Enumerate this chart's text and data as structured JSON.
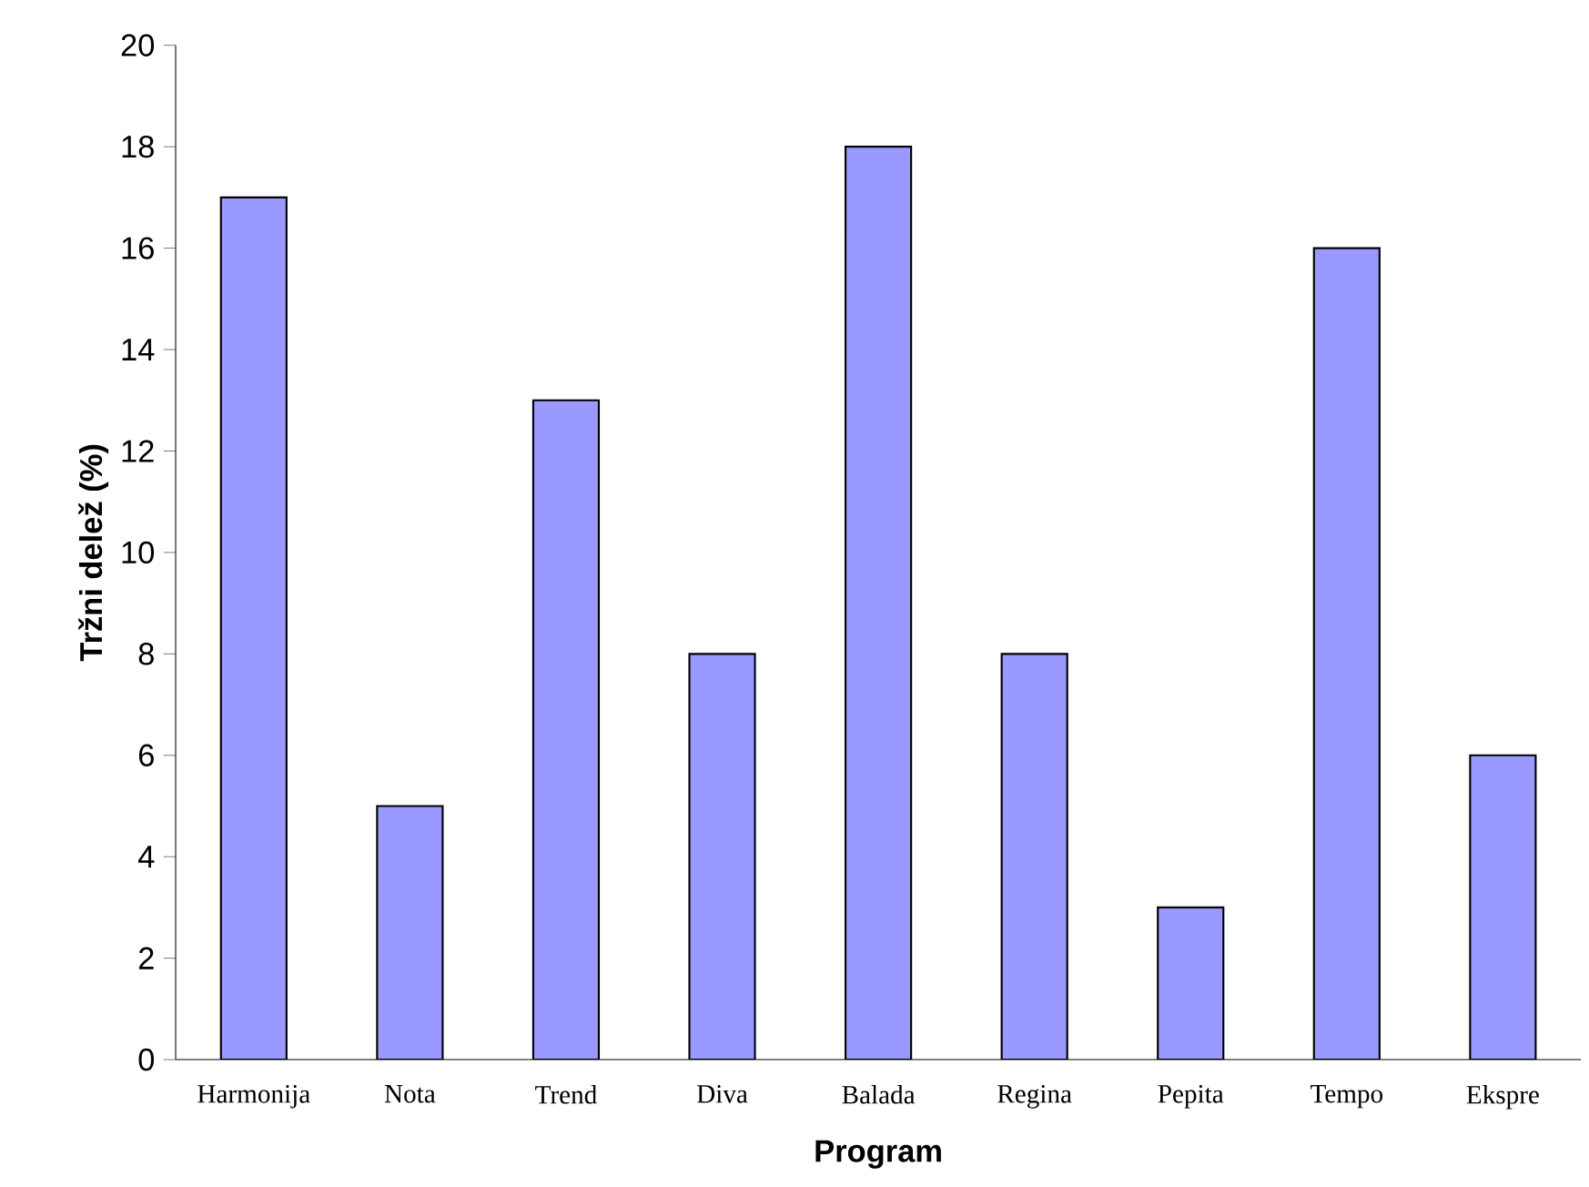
{
  "chart_data": {
    "type": "bar",
    "xlabel": "Program",
    "ylabel": "Tržni delež (%)",
    "categories": [
      "Harmonija",
      "Nota",
      "Trend",
      "Diva",
      "Balada",
      "Regina",
      "Pepita",
      "Tempo",
      "Ekspre"
    ],
    "values": [
      17,
      5,
      13,
      8,
      18,
      8,
      3,
      16,
      6
    ],
    "color": "#9999ff",
    "ylim": [
      0,
      20
    ],
    "yticks": [
      0,
      2,
      4,
      6,
      8,
      10,
      12,
      14,
      16,
      18,
      20
    ],
    "grid": false
  }
}
